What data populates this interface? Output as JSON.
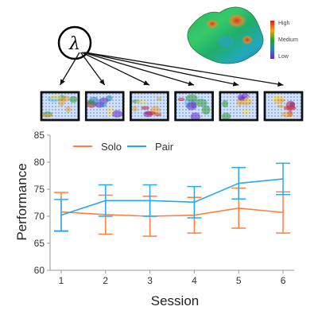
{
  "symbol": "λ",
  "colorbar": {
    "labels": [
      "High",
      "Medium",
      "Low"
    ]
  },
  "thumbnail_count": 6,
  "colors": {
    "solo": "#ff7f3f",
    "pair": "#29a9ea",
    "axis": "#999999"
  },
  "chart_data": {
    "type": "line",
    "x": [
      1,
      2,
      3,
      4,
      5,
      6
    ],
    "xlabel": "Session",
    "ylabel": "Performance",
    "xlim": [
      0.75,
      6.25
    ],
    "ylim": [
      60,
      85
    ],
    "xticks": [
      1,
      2,
      3,
      4,
      5,
      6
    ],
    "yticks": [
      60,
      65,
      70,
      75,
      80,
      85
    ],
    "legend": "top-left",
    "grid": false,
    "series": [
      {
        "name": "Solo",
        "values": [
          70.8,
          70.3,
          70.0,
          70.2,
          71.5,
          70.7
        ],
        "err": [
          3.6,
          3.6,
          3.7,
          3.3,
          3.7,
          3.8
        ]
      },
      {
        "name": "Pair",
        "values": [
          70.2,
          72.9,
          72.9,
          72.6,
          76.1,
          76.9
        ],
        "err": [
          2.9,
          2.9,
          2.9,
          2.9,
          2.9,
          2.9
        ]
      }
    ]
  }
}
